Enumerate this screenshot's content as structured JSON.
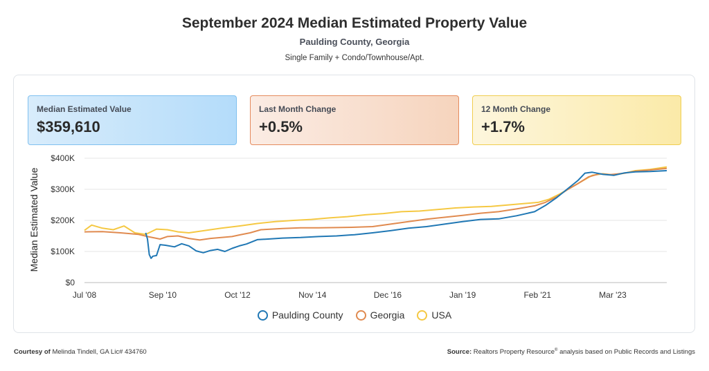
{
  "header": {
    "title": "September 2024 Median Estimated Property Value",
    "subtitle": "Paulding County, Georgia",
    "property_types": "Single Family + Condo/Townhouse/Apt."
  },
  "cards": [
    {
      "label": "Median Estimated Value",
      "value": "$359,610"
    },
    {
      "label": "Last Month Change",
      "value": "+0.5%"
    },
    {
      "label": "12 Month Change",
      "value": "+1.7%"
    }
  ],
  "colors": {
    "paulding": "#1f77b4",
    "georgia": "#e08a4f",
    "usa": "#f5c842"
  },
  "legend": [
    {
      "name": "Paulding County",
      "color": "#1f77b4"
    },
    {
      "name": "Georgia",
      "color": "#e08a4f"
    },
    {
      "name": "USA",
      "color": "#f5c842"
    }
  ],
  "footer": {
    "courtesy_label": "Courtesy of",
    "courtesy_text": "Melinda Tindell, GA Lic# 434760",
    "source_label": "Source:",
    "source_text_a": "Realtors Property Resource",
    "source_reg": "®",
    "source_text_b": " analysis based on Public Records and Listings"
  },
  "chart_data": {
    "type": "line",
    "title": "September 2024 Median Estimated Property Value",
    "ylabel": "Median Estimated Value",
    "xlabel": "",
    "ylim": [
      0,
      400000
    ],
    "yticks": [
      0,
      100000,
      200000,
      300000,
      400000
    ],
    "ytick_labels": [
      "$0",
      "$100K",
      "$200K",
      "$300K",
      "$400K"
    ],
    "xlim": [
      2008.5,
      2024.67
    ],
    "xticks": [
      2008.5,
      2010.67,
      2012.75,
      2014.83,
      2016.92,
      2019.0,
      2021.08,
      2023.17
    ],
    "xtick_labels": [
      "Jul '08",
      "Sep '10",
      "Oct '12",
      "Nov '14",
      "Dec '16",
      "Jan '19",
      "Feb '21",
      "Mar '23"
    ],
    "grid": true,
    "legend_position": "bottom",
    "series": [
      {
        "name": "Paulding County",
        "x": [
          2010.2,
          2010.25,
          2010.3,
          2010.35,
          2010.4,
          2010.5,
          2010.6,
          2010.75,
          2011.0,
          2011.2,
          2011.4,
          2011.6,
          2011.8,
          2012.0,
          2012.2,
          2012.4,
          2012.6,
          2012.8,
          2013.0,
          2013.3,
          2013.6,
          2014.0,
          2014.5,
          2015.0,
          2015.5,
          2016.0,
          2016.5,
          2017.0,
          2017.5,
          2018.0,
          2018.5,
          2019.0,
          2019.5,
          2020.0,
          2020.5,
          2021.0,
          2021.3,
          2021.6,
          2021.9,
          2022.2,
          2022.4,
          2022.6,
          2022.9,
          2023.2,
          2023.5,
          2023.8,
          2024.2,
          2024.67
        ],
        "y": [
          160000,
          140000,
          90000,
          78000,
          85000,
          87000,
          122000,
          120000,
          115000,
          125000,
          118000,
          102000,
          96000,
          103000,
          107000,
          100000,
          110000,
          118000,
          124000,
          138000,
          140000,
          143000,
          145000,
          148000,
          150000,
          154000,
          160000,
          167000,
          175000,
          180000,
          188000,
          196000,
          203000,
          205000,
          215000,
          228000,
          248000,
          272000,
          300000,
          328000,
          352000,
          355000,
          348000,
          345000,
          353000,
          356000,
          357000,
          360000
        ]
      },
      {
        "name": "Georgia",
        "x": [
          2008.5,
          2009.0,
          2009.5,
          2010.0,
          2010.3,
          2010.6,
          2010.8,
          2011.1,
          2011.4,
          2011.7,
          2012.0,
          2012.3,
          2012.6,
          2012.8,
          2013.1,
          2013.4,
          2013.7,
          2014.0,
          2014.5,
          2015.0,
          2015.5,
          2016.0,
          2016.5,
          2017.0,
          2017.5,
          2018.0,
          2018.5,
          2019.0,
          2019.5,
          2020.0,
          2020.5,
          2021.0,
          2021.3,
          2021.6,
          2021.9,
          2022.2,
          2022.5,
          2022.8,
          2023.1,
          2023.5,
          2023.8,
          2024.2,
          2024.67
        ],
        "y": [
          163000,
          164000,
          160000,
          155000,
          147000,
          140000,
          148000,
          150000,
          142000,
          137000,
          142000,
          145000,
          148000,
          153000,
          160000,
          170000,
          172000,
          174000,
          176000,
          176000,
          177000,
          178000,
          180000,
          188000,
          196000,
          204000,
          210000,
          216000,
          223000,
          228000,
          237000,
          247000,
          258000,
          275000,
          298000,
          318000,
          340000,
          350000,
          347000,
          352000,
          358000,
          362000,
          367000
        ]
      },
      {
        "name": "USA",
        "x": [
          2008.5,
          2008.7,
          2009.0,
          2009.3,
          2009.6,
          2009.9,
          2010.2,
          2010.5,
          2010.8,
          2011.1,
          2011.4,
          2011.7,
          2012.0,
          2012.3,
          2012.8,
          2013.3,
          2013.8,
          2014.3,
          2014.8,
          2015.3,
          2015.8,
          2016.3,
          2016.8,
          2017.3,
          2017.8,
          2018.3,
          2018.8,
          2019.3,
          2019.8,
          2020.3,
          2020.8,
          2021.1,
          2021.4,
          2021.7,
          2022.0,
          2022.3,
          2022.6,
          2022.9,
          2023.2,
          2023.5,
          2023.8,
          2024.2,
          2024.67
        ],
        "y": [
          168000,
          185000,
          175000,
          170000,
          182000,
          160000,
          155000,
          172000,
          170000,
          163000,
          160000,
          165000,
          170000,
          175000,
          182000,
          190000,
          196000,
          200000,
          203000,
          208000,
          212000,
          218000,
          222000,
          228000,
          230000,
          235000,
          240000,
          243000,
          245000,
          250000,
          255000,
          258000,
          268000,
          285000,
          305000,
          325000,
          345000,
          350000,
          346000,
          352000,
          360000,
          364000,
          372000
        ]
      }
    ]
  }
}
